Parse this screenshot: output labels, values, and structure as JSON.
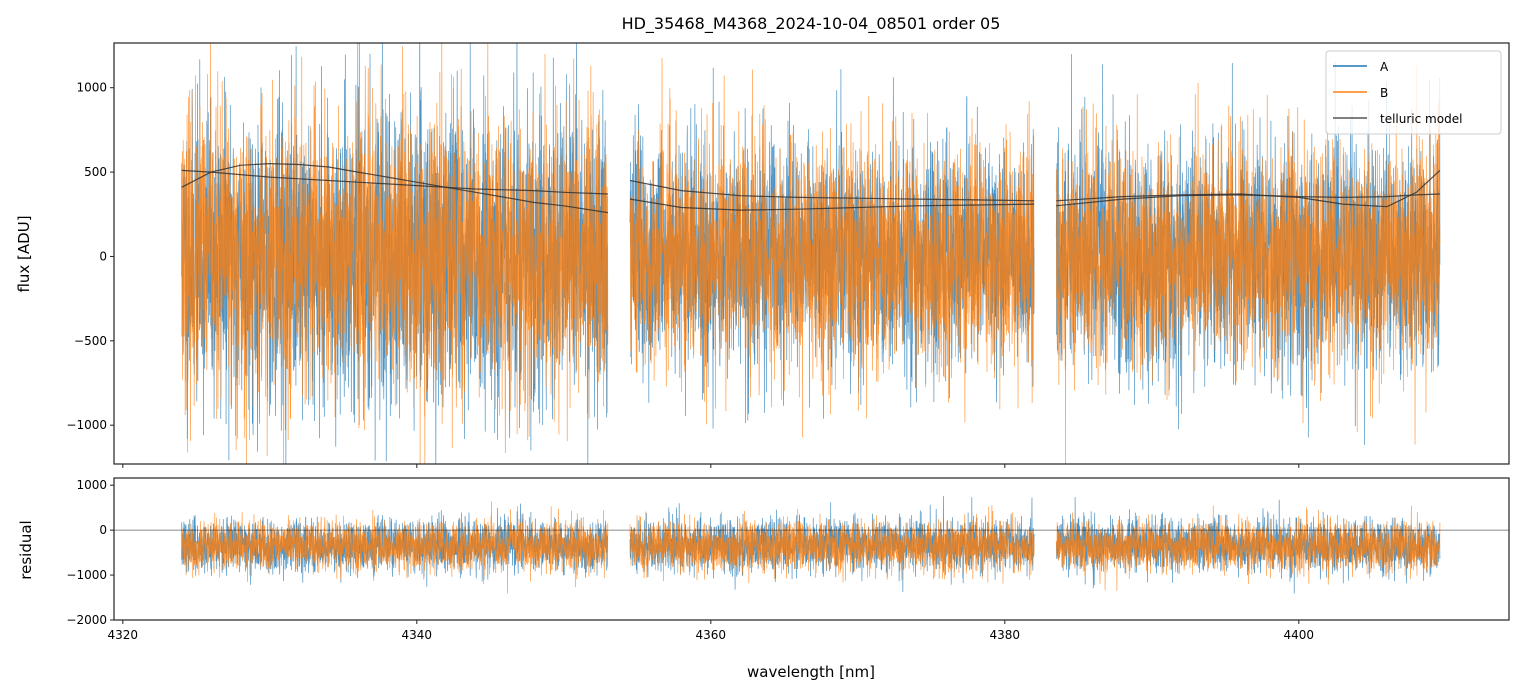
{
  "chart_data": [
    {
      "type": "line",
      "title": "HD_35468_M4368_2024-10-04_08501  order 05",
      "xlabel": "",
      "ylabel": "flux [ADU]",
      "xlim": [
        4319.4,
        4414.3
      ],
      "ylim": [
        -1230,
        1265
      ],
      "xticks": [
        4320,
        4340,
        4360,
        4380,
        4400
      ],
      "yticks": [
        -1000,
        -500,
        0,
        500,
        1000
      ],
      "ytick_labels": [
        "−1000",
        "−500",
        "0",
        "500",
        "1000"
      ],
      "legend": {
        "placement": "top-right",
        "entries": [
          "A",
          "B",
          "telluric model"
        ]
      },
      "segments": [
        [
          4324.0,
          4353.0
        ],
        [
          4354.5,
          4382.0
        ],
        [
          4383.5,
          4409.6
        ]
      ],
      "series": [
        {
          "name": "A",
          "color": "#1f77b4",
          "mean": 0,
          "sigma": 330,
          "seed": 11
        },
        {
          "name": "B",
          "color": "#ff7f0e",
          "mean": 0,
          "sigma": 330,
          "seed": 23
        },
        {
          "name": "telluric model",
          "color": "#333333",
          "curves": [
            {
              "x": [
                4324,
                4326,
                4328,
                4330,
                4332,
                4334,
                4336,
                4338,
                4340,
                4342,
                4344,
                4346,
                4348,
                4350,
                4353
              ],
              "y": [
                510,
                500,
                485,
                470,
                460,
                450,
                440,
                430,
                420,
                410,
                400,
                395,
                390,
                380,
                370
              ]
            },
            {
              "x": [
                4324,
                4326,
                4328,
                4330,
                4332,
                4334,
                4336,
                4338,
                4340,
                4342,
                4344,
                4346,
                4348,
                4350,
                4353
              ],
              "y": [
                410,
                500,
                540,
                550,
                545,
                530,
                500,
                470,
                440,
                410,
                380,
                350,
                320,
                300,
                260
              ]
            },
            {
              "x": [
                4354.5,
                4358,
                4362,
                4366,
                4370,
                4374,
                4378,
                4382
              ],
              "y": [
                450,
                390,
                360,
                350,
                345,
                340,
                335,
                330
              ]
            },
            {
              "x": [
                4354.5,
                4358,
                4362,
                4366,
                4370,
                4374,
                4378,
                4382
              ],
              "y": [
                340,
                290,
                275,
                280,
                290,
                300,
                305,
                310
              ]
            },
            {
              "x": [
                4383.5,
                4388,
                4392,
                4396,
                4400,
                4403,
                4406,
                4408,
                4409.6
              ],
              "y": [
                330,
                355,
                365,
                370,
                350,
                310,
                295,
                380,
                510
              ]
            },
            {
              "x": [
                4383.5,
                4388,
                4392,
                4396,
                4400,
                4403,
                4406,
                4408,
                4409.6
              ],
              "y": [
                300,
                340,
                360,
                365,
                355,
                350,
                355,
                365,
                370
              ]
            }
          ]
        }
      ]
    },
    {
      "type": "line",
      "xlabel": "wavelength [nm]",
      "ylabel": "residual",
      "xlim": [
        4319.4,
        4414.3
      ],
      "ylim": [
        -2000,
        1160
      ],
      "xticks": [
        4320,
        4340,
        4360,
        4380,
        4400
      ],
      "xtick_labels": [
        "4320",
        "4340",
        "4360",
        "4380",
        "4400"
      ],
      "yticks": [
        -2000,
        -1000,
        0,
        1000
      ],
      "ytick_labels": [
        "−2000",
        "−1000",
        "0",
        "1000"
      ],
      "hline": 0,
      "series": [
        {
          "name": "A",
          "color": "#1f77b4",
          "mean": -350,
          "sigma": 280,
          "seed": 37
        },
        {
          "name": "B",
          "color": "#ff7f0e",
          "mean": -350,
          "sigma": 280,
          "seed": 41
        }
      ]
    }
  ]
}
